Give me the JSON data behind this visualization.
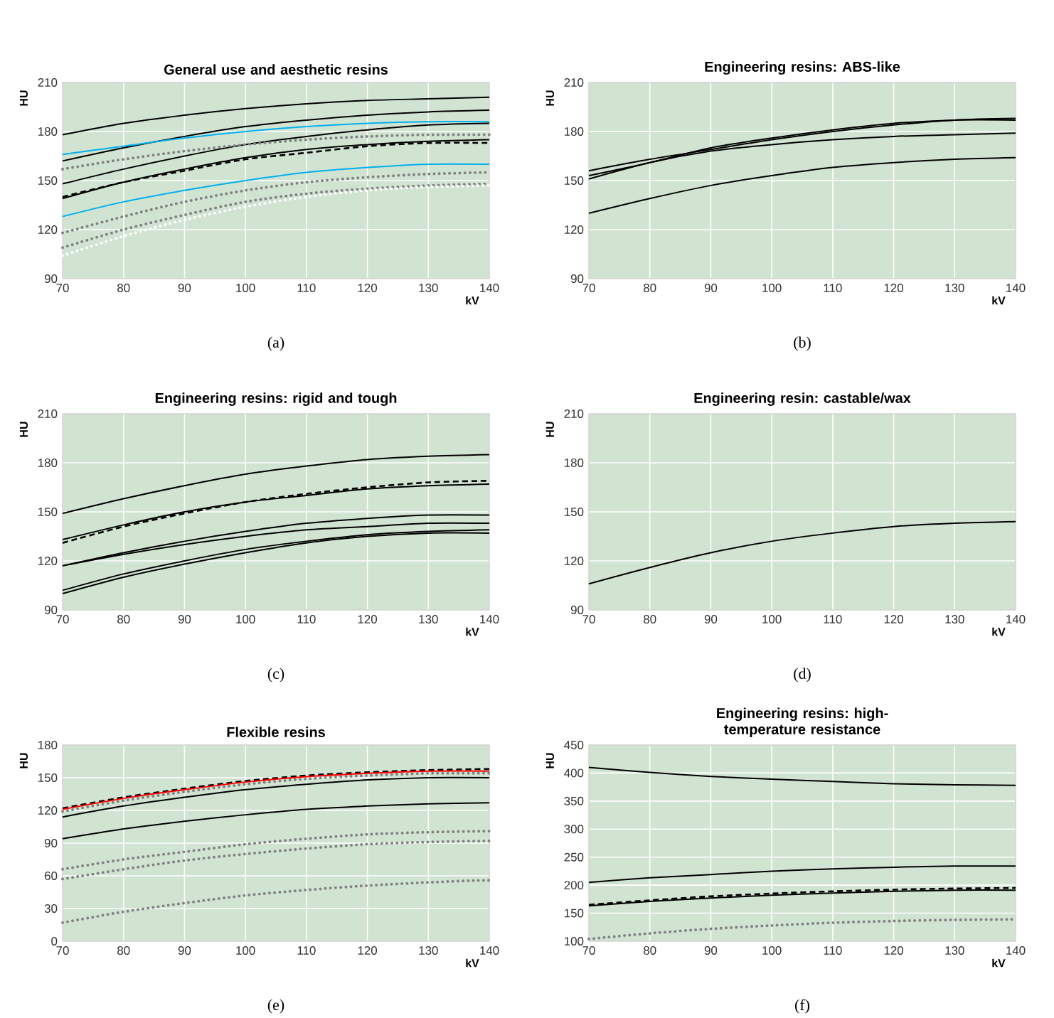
{
  "chart_data": [
    {
      "type": "line",
      "title": "General use and aesthetic resins",
      "xlabel": "kV",
      "ylabel": "HU",
      "x": [
        70,
        80,
        90,
        100,
        110,
        120,
        130,
        140
      ],
      "xlim": [
        70,
        140
      ],
      "xticks": [
        70,
        80,
        90,
        100,
        110,
        120,
        130,
        140
      ],
      "ylim": [
        90,
        210
      ],
      "yticks": [
        90,
        120,
        150,
        180,
        210
      ],
      "grid": true,
      "annotations": [
        "(a)"
      ],
      "series": [
        {
          "color": "#000000",
          "line_style": "solid",
          "values": [
            178,
            185,
            190,
            194,
            197,
            199,
            200,
            201
          ]
        },
        {
          "color": "#000000",
          "line_style": "solid",
          "values": [
            162,
            170,
            177,
            183,
            187,
            190,
            192,
            193
          ]
        },
        {
          "color": "#00b0f0",
          "line_style": "solid",
          "values": [
            166,
            171,
            176,
            180,
            183,
            185,
            186,
            186
          ]
        },
        {
          "color": "#000000",
          "line_style": "solid",
          "values": [
            148,
            157,
            165,
            172,
            177,
            181,
            184,
            185
          ]
        },
        {
          "color": "#808080",
          "line_style": "dotted",
          "values": [
            157,
            163,
            168,
            172,
            175,
            177,
            178,
            178
          ]
        },
        {
          "color": "#000000",
          "line_style": "solid",
          "values": [
            139,
            149,
            157,
            164,
            169,
            172,
            174,
            175
          ]
        },
        {
          "color": "#000000",
          "line_style": "dashed",
          "values": [
            140,
            149,
            156,
            163,
            167,
            171,
            173,
            173
          ]
        },
        {
          "color": "#00b0f0",
          "line_style": "solid",
          "values": [
            128,
            137,
            144,
            150,
            155,
            158,
            160,
            160
          ]
        },
        {
          "color": "#808080",
          "line_style": "dotted",
          "values": [
            118,
            128,
            137,
            144,
            149,
            152,
            154,
            155
          ]
        },
        {
          "color": "#808080",
          "line_style": "dotted",
          "values": [
            109,
            120,
            129,
            137,
            142,
            145,
            147,
            148
          ]
        },
        {
          "color": "#ffffff",
          "line_style": "dotted",
          "values": [
            104,
            116,
            126,
            134,
            140,
            144,
            146,
            147
          ]
        }
      ]
    },
    {
      "type": "line",
      "title": "Engineering resins: ABS-like",
      "xlabel": "kV",
      "ylabel": "HU",
      "x": [
        70,
        80,
        90,
        100,
        110,
        120,
        130,
        140
      ],
      "xlim": [
        70,
        140
      ],
      "xticks": [
        70,
        80,
        90,
        100,
        110,
        120,
        130,
        140
      ],
      "ylim": [
        90,
        210
      ],
      "yticks": [
        90,
        120,
        150,
        180,
        210
      ],
      "grid": true,
      "annotations": [
        "(b)"
      ],
      "series": [
        {
          "color": "#000000",
          "line_style": "solid",
          "values": [
            156,
            163,
            169,
            175,
            180,
            184,
            187,
            188
          ]
        },
        {
          "color": "#000000",
          "line_style": "solid",
          "values": [
            153,
            161,
            170,
            176,
            181,
            185,
            187,
            187
          ]
        },
        {
          "color": "#000000",
          "line_style": "solid",
          "values": [
            151,
            161,
            168,
            172,
            175,
            177,
            178,
            179
          ]
        },
        {
          "color": "#000000",
          "line_style": "solid",
          "values": [
            130,
            139,
            147,
            153,
            158,
            161,
            163,
            164
          ]
        }
      ]
    },
    {
      "type": "line",
      "title": "Engineering resins: rigid and tough",
      "xlabel": "kV",
      "ylabel": "HU",
      "x": [
        70,
        80,
        90,
        100,
        110,
        120,
        130,
        140
      ],
      "xlim": [
        70,
        140
      ],
      "xticks": [
        70,
        80,
        90,
        100,
        110,
        120,
        130,
        140
      ],
      "ylim": [
        90,
        210
      ],
      "yticks": [
        90,
        120,
        150,
        180,
        210
      ],
      "grid": true,
      "annotations": [
        "(c)"
      ],
      "series": [
        {
          "color": "#000000",
          "line_style": "solid",
          "values": [
            149,
            158,
            166,
            173,
            178,
            182,
            184,
            185
          ]
        },
        {
          "color": "#000000",
          "line_style": "dashed",
          "values": [
            131,
            141,
            149,
            156,
            161,
            165,
            168,
            169
          ]
        },
        {
          "color": "#000000",
          "line_style": "solid",
          "values": [
            133,
            142,
            150,
            156,
            160,
            164,
            166,
            167
          ]
        },
        {
          "color": "#000000",
          "line_style": "solid",
          "values": [
            117,
            125,
            132,
            138,
            143,
            146,
            148,
            148
          ]
        },
        {
          "color": "#000000",
          "line_style": "solid",
          "values": [
            117,
            124,
            130,
            135,
            139,
            141,
            143,
            143
          ]
        },
        {
          "color": "#000000",
          "line_style": "solid",
          "values": [
            102,
            112,
            120,
            127,
            132,
            136,
            138,
            139
          ]
        },
        {
          "color": "#000000",
          "line_style": "solid",
          "values": [
            100,
            110,
            118,
            125,
            131,
            135,
            137,
            137
          ]
        }
      ]
    },
    {
      "type": "line",
      "title": "Engineering resin: castable/wax",
      "xlabel": "kV",
      "ylabel": "HU",
      "x": [
        70,
        80,
        90,
        100,
        110,
        120,
        130,
        140
      ],
      "xlim": [
        70,
        140
      ],
      "xticks": [
        70,
        80,
        90,
        100,
        110,
        120,
        130,
        140
      ],
      "ylim": [
        90,
        210
      ],
      "yticks": [
        90,
        120,
        150,
        180,
        210
      ],
      "grid": true,
      "annotations": [
        "(d)"
      ],
      "series": [
        {
          "color": "#000000",
          "line_style": "solid",
          "values": [
            106,
            116,
            125,
            132,
            137,
            141,
            143,
            144
          ]
        }
      ]
    },
    {
      "type": "line",
      "title": "Flexible resins",
      "xlabel": "kV",
      "ylabel": "HU",
      "x": [
        70,
        80,
        90,
        100,
        110,
        120,
        130,
        140
      ],
      "xlim": [
        70,
        140
      ],
      "xticks": [
        70,
        80,
        90,
        100,
        110,
        120,
        130,
        140
      ],
      "ylim": [
        0,
        180
      ],
      "yticks": [
        0,
        30,
        60,
        90,
        120,
        150,
        180
      ],
      "grid": true,
      "annotations": [
        "(e)"
      ],
      "series": [
        {
          "color": "#808080",
          "line_style": "dotted",
          "values": [
            119,
            129,
            137,
            144,
            149,
            152,
            154,
            154
          ]
        },
        {
          "color": "#000000",
          "line_style": "dashed",
          "values": [
            122,
            132,
            140,
            147,
            152,
            155,
            157,
            158
          ]
        },
        {
          "color": "#ff0000",
          "line_style": "solid",
          "values": [
            121,
            131,
            139,
            146,
            151,
            154,
            156,
            156
          ]
        },
        {
          "color": "#000000",
          "line_style": "solid",
          "values": [
            114,
            124,
            132,
            139,
            144,
            148,
            150,
            150
          ]
        },
        {
          "color": "#000000",
          "line_style": "solid",
          "values": [
            94,
            103,
            110,
            116,
            121,
            124,
            126,
            127
          ]
        },
        {
          "color": "#808080",
          "line_style": "dotted",
          "values": [
            66,
            75,
            82,
            89,
            94,
            98,
            100,
            101
          ]
        },
        {
          "color": "#808080",
          "line_style": "dotted",
          "values": [
            57,
            66,
            74,
            80,
            85,
            89,
            91,
            92
          ]
        },
        {
          "color": "#808080",
          "line_style": "dotted",
          "values": [
            17,
            27,
            35,
            42,
            47,
            51,
            54,
            56
          ]
        }
      ]
    },
    {
      "type": "line",
      "title": "Engineering resins: high-temperature resistance",
      "xlabel": "kV",
      "ylabel": "HU",
      "x": [
        70,
        80,
        90,
        100,
        110,
        120,
        130,
        140
      ],
      "xlim": [
        70,
        140
      ],
      "xticks": [
        70,
        80,
        90,
        100,
        110,
        120,
        130,
        140
      ],
      "ylim": [
        100,
        450
      ],
      "yticks": [
        100,
        150,
        200,
        250,
        300,
        350,
        400,
        450
      ],
      "grid": true,
      "annotations": [
        "(f)"
      ],
      "series": [
        {
          "color": "#000000",
          "line_style": "solid",
          "values": [
            410,
            401,
            394,
            389,
            385,
            381,
            379,
            378
          ]
        },
        {
          "color": "#000000",
          "line_style": "solid",
          "values": [
            205,
            213,
            219,
            225,
            229,
            232,
            234,
            234
          ]
        },
        {
          "color": "#000000",
          "line_style": "dashed",
          "values": [
            165,
            173,
            180,
            185,
            189,
            192,
            194,
            195
          ]
        },
        {
          "color": "#000000",
          "line_style": "solid",
          "values": [
            163,
            171,
            177,
            182,
            186,
            189,
            191,
            191
          ]
        },
        {
          "color": "#808080",
          "line_style": "dotted",
          "values": [
            104,
            114,
            122,
            128,
            133,
            136,
            138,
            139
          ]
        }
      ]
    }
  ]
}
